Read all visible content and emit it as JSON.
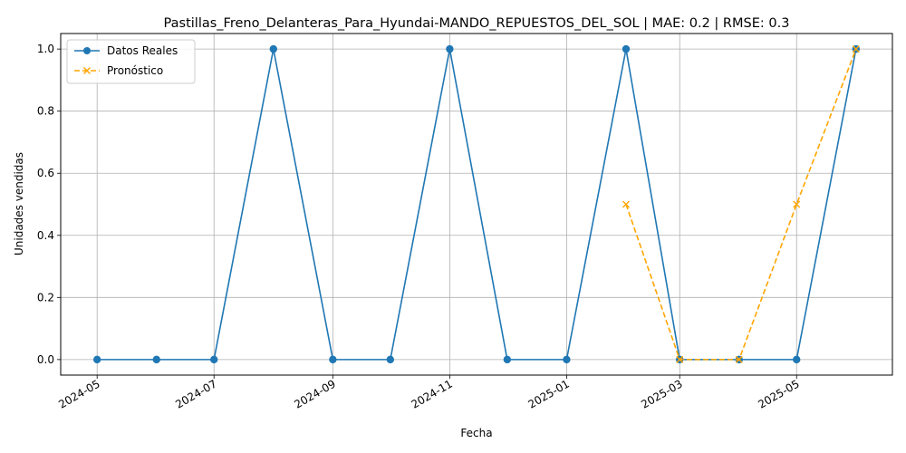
{
  "chart_data": {
    "type": "line",
    "title": "Pastillas_Freno_Delanteras_Para_Hyundai-MANDO_REPUESTOS_DEL_SOL | MAE: 0.2 | RMSE: 0.3",
    "xlabel": "Fecha",
    "ylabel": "Unidades vendidas",
    "x_tick_labels": [
      "2024-05",
      "2024-07",
      "2024-09",
      "2024-11",
      "2025-01",
      "2025-03",
      "2025-05"
    ],
    "y_tick_labels": [
      "0.0",
      "0.2",
      "0.4",
      "0.6",
      "0.8",
      "1.0"
    ],
    "ylim": [
      -0.05,
      1.05
    ],
    "xlim": [
      "2024-04-12",
      "2025-06-20"
    ],
    "grid": true,
    "legend_position": "top-left",
    "series": [
      {
        "name": "Datos Reales",
        "style": "solid-circle",
        "color": "#1f77b4",
        "points": [
          {
            "x": "2024-05-01",
            "y": 0
          },
          {
            "x": "2024-06-01",
            "y": 0
          },
          {
            "x": "2024-07-01",
            "y": 0
          },
          {
            "x": "2024-08-01",
            "y": 1
          },
          {
            "x": "2024-09-01",
            "y": 0
          },
          {
            "x": "2024-10-01",
            "y": 0
          },
          {
            "x": "2024-11-01",
            "y": 1
          },
          {
            "x": "2024-12-01",
            "y": 0
          },
          {
            "x": "2025-01-01",
            "y": 0
          },
          {
            "x": "2025-02-01",
            "y": 1
          },
          {
            "x": "2025-03-01",
            "y": 0
          },
          {
            "x": "2025-04-01",
            "y": 0
          },
          {
            "x": "2025-05-01",
            "y": 0
          },
          {
            "x": "2025-06-01",
            "y": 1
          }
        ]
      },
      {
        "name": "Pronóstico",
        "style": "dashed-x",
        "color": "#ffa500",
        "points": [
          {
            "x": "2025-02-01",
            "y": 0.5
          },
          {
            "x": "2025-03-01",
            "y": 0
          },
          {
            "x": "2025-04-01",
            "y": 0
          },
          {
            "x": "2025-05-01",
            "y": 0.5
          },
          {
            "x": "2025-06-01",
            "y": 1
          }
        ]
      }
    ]
  }
}
